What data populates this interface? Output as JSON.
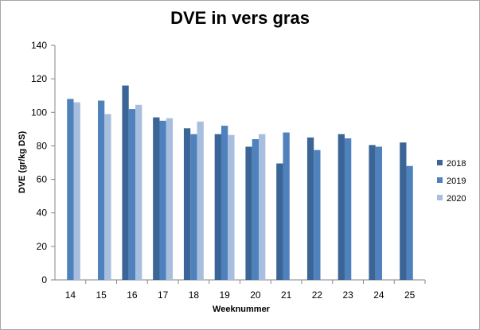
{
  "chart_data": {
    "type": "bar",
    "title": "DVE in vers gras",
    "xlabel": "Weeknummer",
    "ylabel": "DVE (gr/kg DS)",
    "ylim": [
      0,
      140
    ],
    "yticks": [
      0,
      20,
      40,
      60,
      80,
      100,
      120,
      140
    ],
    "grid": false,
    "legend_position": "right",
    "categories": [
      "14",
      "15",
      "16",
      "17",
      "18",
      "19",
      "20",
      "21",
      "22",
      "23",
      "24",
      "25"
    ],
    "series": [
      {
        "name": "2018",
        "color": "#3b6597",
        "values": [
          null,
          null,
          116,
          97,
          90.5,
          87,
          79.5,
          69.5,
          85,
          87,
          80.5,
          82
        ]
      },
      {
        "name": "2019",
        "color": "#4f81bd",
        "values": [
          108,
          107,
          102,
          95,
          87,
          92,
          84,
          88,
          77.5,
          84.5,
          79.5,
          68
        ]
      },
      {
        "name": "2020",
        "color": "#a8bedf",
        "values": [
          106,
          99,
          104.5,
          96.5,
          94.5,
          86.5,
          87,
          null,
          null,
          null,
          null,
          null
        ]
      }
    ]
  }
}
